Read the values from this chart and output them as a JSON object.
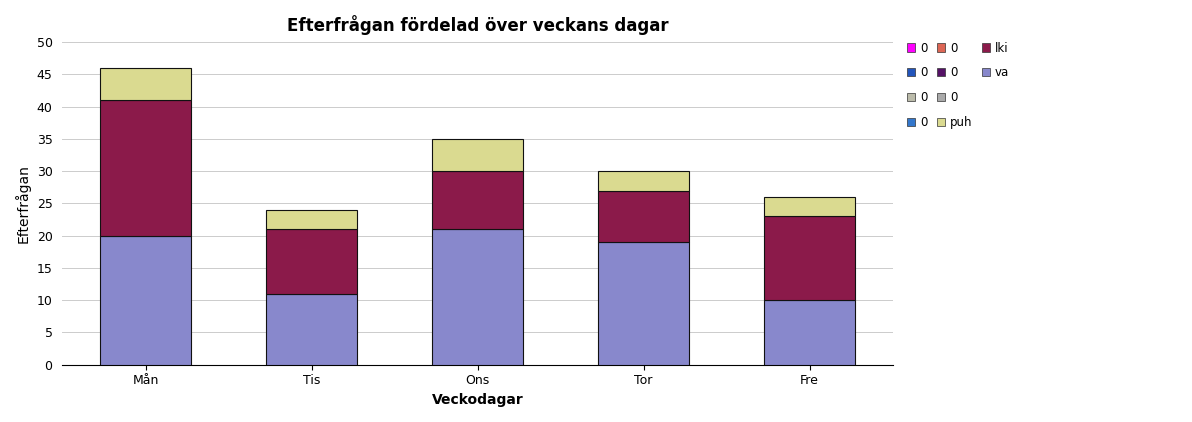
{
  "title": "Efterfrågan fördelad över veckans dagar",
  "xlabel": "Veckodagar",
  "ylabel": "Efterfrågan",
  "categories": [
    "Mån",
    "Tis",
    "Ons",
    "Tor",
    "Fre"
  ],
  "series": {
    "va": [
      20,
      11,
      21,
      19,
      10
    ],
    "lki": [
      21,
      10,
      9,
      8,
      13
    ],
    "puh": [
      5,
      3,
      5,
      3,
      3
    ]
  },
  "colors": {
    "va": "#8888CC",
    "lki": "#8B1A4A",
    "puh": "#DADA90"
  },
  "legend_rows": [
    [
      {
        "color": "#FF00FF",
        "label": "0"
      },
      {
        "color": "#2255BB",
        "label": "0"
      },
      {
        "color": "#BBBBAA",
        "label": "0"
      }
    ],
    [
      {
        "color": "#3377CC",
        "label": "0"
      },
      {
        "color": "#DD6655",
        "label": "0"
      },
      {
        "color": "#551166",
        "label": "0"
      }
    ],
    [
      {
        "color": "#AAAAAA",
        "label": "0"
      },
      {
        "color": "#DADA90",
        "label": "puh"
      },
      {
        "color": "#8B1A4A",
        "label": "lki"
      }
    ],
    [
      {
        "color": "#8888CC",
        "label": "va"
      }
    ]
  ],
  "ylim": [
    0,
    50
  ],
  "yticks": [
    0,
    5,
    10,
    15,
    20,
    25,
    30,
    35,
    40,
    45,
    50
  ],
  "bar_width": 0.55,
  "background_color": "#FFFFFF",
  "grid_color": "#CCCCCC",
  "title_fontsize": 12,
  "axis_label_fontsize": 10,
  "tick_fontsize": 9
}
